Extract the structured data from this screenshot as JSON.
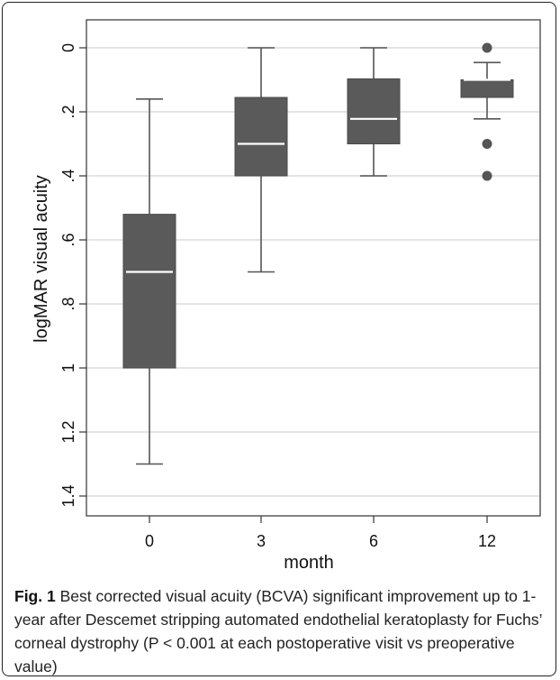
{
  "chart_data": {
    "type": "box",
    "xlabel": "month",
    "ylabel": "logMAR visual acuity",
    "y_reversed": true,
    "ylim": [
      0,
      1.45
    ],
    "yticks": [
      "0",
      ".2",
      ".4",
      ".6",
      ".8",
      "1",
      "1.2",
      "1.4"
    ],
    "ytick_values": [
      0,
      0.2,
      0.4,
      0.6,
      0.8,
      1.0,
      1.2,
      1.4
    ],
    "categories": [
      "0",
      "3",
      "6",
      "12"
    ],
    "boxes": [
      {
        "category": "0",
        "whisker_low": 0.16,
        "q1": 0.52,
        "median": 0.7,
        "q3": 1.0,
        "whisker_high": 1.3,
        "outliers": []
      },
      {
        "category": "3",
        "whisker_low": 0.0,
        "q1": 0.155,
        "median": 0.3,
        "q3": 0.4,
        "whisker_high": 0.7,
        "outliers": []
      },
      {
        "category": "6",
        "whisker_low": 0.0,
        "q1": 0.097,
        "median": 0.222,
        "q3": 0.3,
        "whisker_high": 0.4,
        "outliers": []
      },
      {
        "category": "12",
        "whisker_low": 0.046,
        "q1": 0.1,
        "median": 0.1,
        "q3": 0.155,
        "whisker_high": 0.222,
        "outliers": [
          0.0,
          0.3,
          0.4
        ]
      }
    ],
    "grid": true,
    "colors": {
      "box": "#5a5a5a",
      "median": "#ffffff",
      "whisker": "#555555",
      "grid": "#dcdcdc",
      "outlier": "#555555"
    }
  },
  "caption": {
    "label": "Fig. 1",
    "text": " Best corrected visual acuity (BCVA) significant improvement up to 1-year after Descemet stripping automated endothelial keratoplasty for Fuchs’ corneal dystrophy (P < 0.001 at each postoperative visit vs preoperative value)"
  }
}
